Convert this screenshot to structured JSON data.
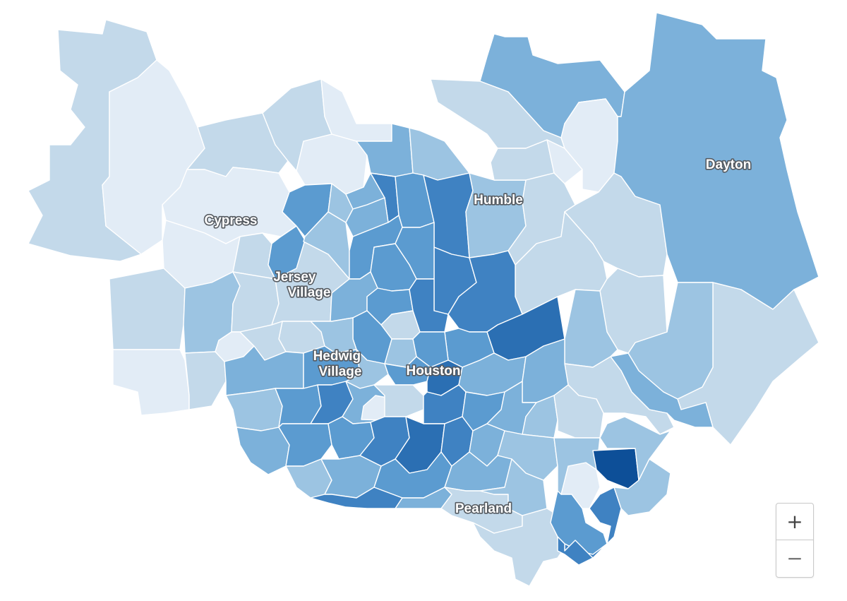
{
  "map": {
    "labels": [
      {
        "id": "cypress",
        "text": "Cypress"
      },
      {
        "id": "jersey-village",
        "lines": [
          "Jersey",
          "Village"
        ]
      },
      {
        "id": "hedwig-village",
        "lines": [
          "Hedwig",
          "Village"
        ]
      },
      {
        "id": "houston",
        "text": "Houston"
      },
      {
        "id": "humble",
        "text": "Humble"
      },
      {
        "id": "dayton",
        "text": "Dayton"
      },
      {
        "id": "pearland",
        "text": "Pearland"
      }
    ],
    "color_scale": [
      "#e2ecf6",
      "#c3d9ea",
      "#9cc4e2",
      "#7cb1da",
      "#5b9bd0",
      "#3f82c2",
      "#2b6fb3",
      "#0d4f98"
    ]
  },
  "zoom": {
    "in_label": "+",
    "out_label": "−"
  }
}
